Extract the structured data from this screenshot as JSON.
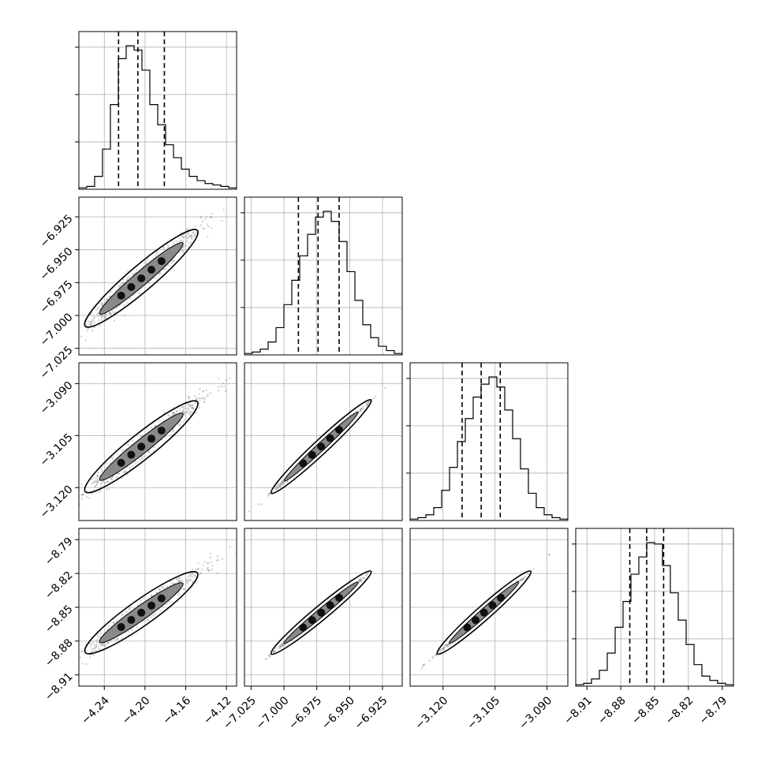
{
  "chart_data": {
    "type": "corner",
    "grid": true,
    "parameters": [
      {
        "range": [
          -4.265,
          -4.11
        ],
        "ticks": [
          -4.24,
          -4.2,
          -4.16,
          -4.12
        ],
        "tick_labels": [
          "−4.24",
          "−4.20",
          "−4.16",
          "−4.12"
        ],
        "hist": [
          0.01,
          0.02,
          0.09,
          0.28,
          0.59,
          0.91,
          1.0,
          0.97,
          0.83,
          0.59,
          0.45,
          0.31,
          0.22,
          0.14,
          0.09,
          0.06,
          0.04,
          0.03,
          0.02,
          0.01
        ],
        "quantiles": [
          -4.226,
          -4.207,
          -4.181
        ]
      },
      {
        "range": [
          -7.03,
          -6.91
        ],
        "ticks": [
          -7.025,
          -7.0,
          -6.975,
          -6.95,
          -6.925
        ],
        "tick_labels": [
          "−7.025",
          "−7.000",
          "−6.975",
          "−6.950",
          "−6.925"
        ],
        "hist": [
          0.01,
          0.02,
          0.04,
          0.09,
          0.19,
          0.35,
          0.52,
          0.69,
          0.84,
          0.96,
          1.0,
          0.93,
          0.79,
          0.58,
          0.38,
          0.21,
          0.12,
          0.06,
          0.03,
          0.01
        ],
        "quantiles": [
          -6.989,
          -6.974,
          -6.958
        ]
      },
      {
        "range": [
          -3.1295,
          -3.084
        ],
        "ticks": [
          -3.12,
          -3.105,
          -3.09
        ],
        "tick_labels": [
          "−3.120",
          "−3.105",
          "−3.090"
        ],
        "hist": [
          0.01,
          0.02,
          0.04,
          0.09,
          0.21,
          0.37,
          0.55,
          0.71,
          0.86,
          0.95,
          1.0,
          0.93,
          0.77,
          0.57,
          0.36,
          0.19,
          0.09,
          0.04,
          0.02,
          0.01
        ],
        "quantiles": [
          -3.1145,
          -3.109,
          -3.1035
        ]
      },
      {
        "range": [
          -8.92,
          -8.78
        ],
        "ticks": [
          -8.91,
          -8.88,
          -8.85,
          -8.82,
          -8.79
        ],
        "tick_labels": [
          "−8.91",
          "−8.88",
          "−8.85",
          "−8.82",
          "−8.79"
        ],
        "hist": [
          0.01,
          0.02,
          0.05,
          0.11,
          0.23,
          0.41,
          0.59,
          0.78,
          0.9,
          1.0,
          0.99,
          0.84,
          0.65,
          0.46,
          0.29,
          0.15,
          0.07,
          0.04,
          0.02,
          0.01
        ],
        "quantiles": [
          -8.872,
          -8.857,
          -8.842
        ]
      }
    ],
    "hist_y_ticks": 3,
    "colors": {
      "hist": "#000000",
      "quantile": "#000000",
      "contour": "#000000",
      "points": "#808080",
      "grid": "#b0b0b0"
    }
  }
}
